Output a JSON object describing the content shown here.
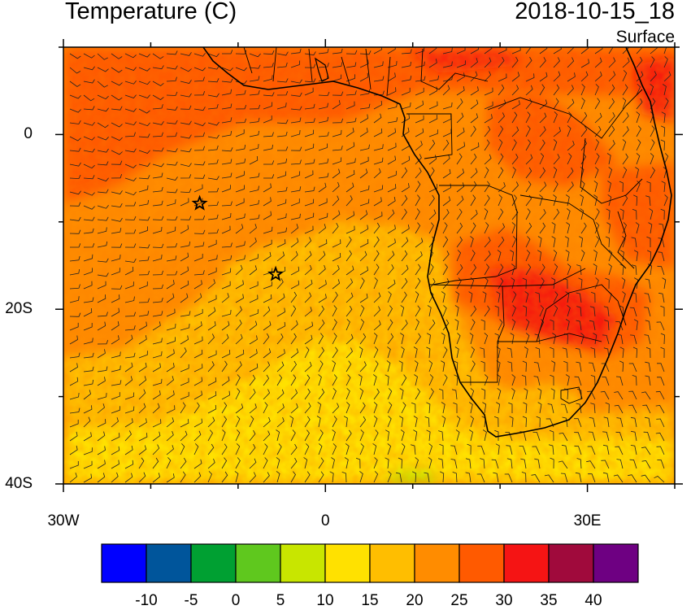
{
  "title": "Temperature (C)",
  "valid_time": "2018-10-15_18",
  "level": "Surface",
  "axes": {
    "y_ticks": [
      {
        "lat": 0,
        "label": "0"
      },
      {
        "lat": -20,
        "label": "20S"
      },
      {
        "lat": -40,
        "label": "40S"
      }
    ],
    "x_ticks": [
      {
        "lon": -30,
        "label": "30W"
      },
      {
        "lon": 0,
        "label": "0"
      },
      {
        "lon": 30,
        "label": "30E"
      }
    ],
    "lon_range": [
      -30,
      40
    ],
    "lat_range": [
      -40,
      10
    ]
  },
  "colorbar": {
    "colors": [
      "#0000ff",
      "#00559b",
      "#00a032",
      "#5fc81e",
      "#c8e600",
      "#ffe100",
      "#ffbe00",
      "#ff8c00",
      "#ff5a00",
      "#f51414",
      "#a00a3c",
      "#6e0082"
    ],
    "labels": [
      "-10",
      "-5",
      "0",
      "5",
      "10",
      "15",
      "20",
      "25",
      "30",
      "35",
      "40"
    ]
  },
  "markers": [
    {
      "name": "star-marker-1",
      "lon": -14.4,
      "lat": -7.9
    },
    {
      "name": "star-marker-2",
      "lon": -5.7,
      "lat": -16.0
    }
  ]
}
